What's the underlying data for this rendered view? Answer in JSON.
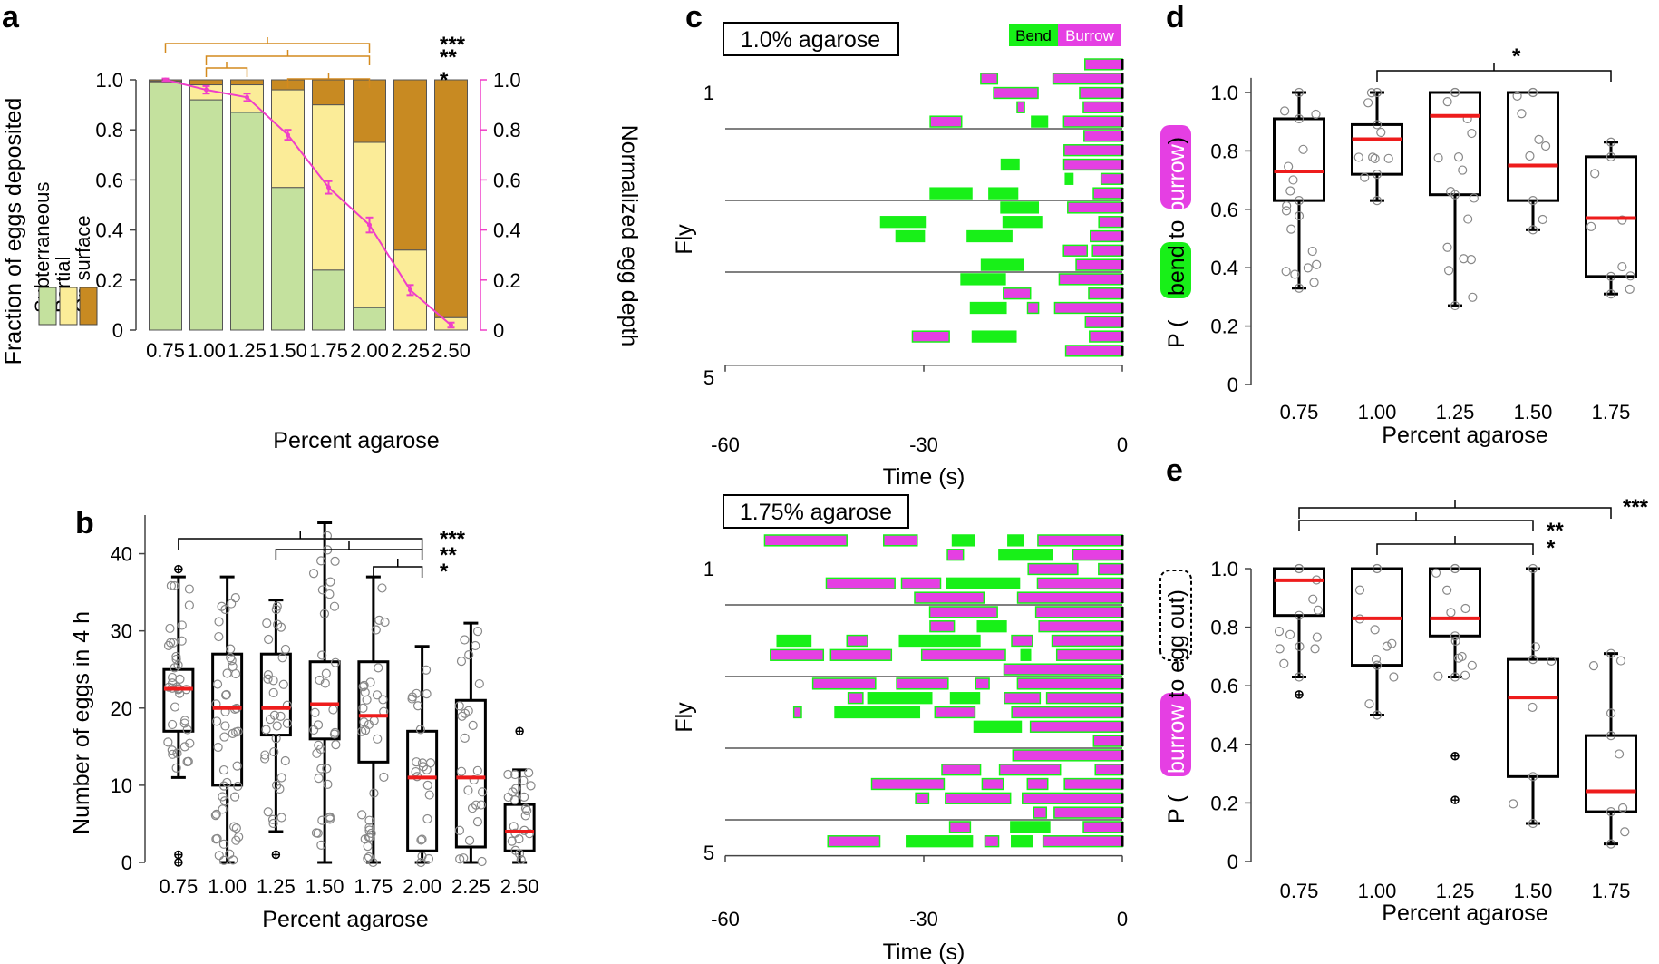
{
  "panels": [
    {
      "label": "a"
    },
    {
      "label": "b"
    },
    {
      "label": "c"
    },
    {
      "label": "d"
    },
    {
      "label": "e"
    }
  ],
  "colors": {
    "subterraneous": "#c4e19e",
    "partial": "#fbec98",
    "surface": "#c88a22",
    "pink": "#ef3fc8",
    "bend": "#18f018",
    "burrow": "#e53fe3",
    "median": "#ee1c1c"
  },
  "chart_data": [
    {
      "id": "a",
      "type": "bar",
      "categories": [
        "0.75",
        "1.00",
        "1.25",
        "1.50",
        "1.75",
        "2.00",
        "2.25",
        "2.50"
      ],
      "series": [
        {
          "name": "Subterraneous",
          "values": [
            0.99,
            0.92,
            0.87,
            0.57,
            0.24,
            0.09,
            0,
            0
          ]
        },
        {
          "name": "Partial",
          "values": [
            0.005,
            0.06,
            0.11,
            0.39,
            0.66,
            0.66,
            0.32,
            0.05
          ]
        },
        {
          "name": "On surface",
          "values": [
            0.005,
            0.02,
            0.02,
            0.04,
            0.1,
            0.25,
            0.68,
            0.95
          ]
        }
      ],
      "line": {
        "name": "Normalized egg depth",
        "values": [
          1.0,
          0.96,
          0.93,
          0.78,
          0.57,
          0.42,
          0.16,
          0.02
        ],
        "err": [
          0.005,
          0.015,
          0.015,
          0.02,
          0.025,
          0.03,
          0.02,
          0.01
        ]
      },
      "ylabel": "Fraction of eggs deposited",
      "y2label": "Normalized egg depth",
      "xlabel": "Percent agarose",
      "yticks": [
        "0",
        "0.2",
        "0.4",
        "0.6",
        "0.8",
        "1.0"
      ],
      "ylim": [
        0,
        1
      ],
      "legend": [
        "Subterraneous",
        "Partial",
        "On surface"
      ],
      "sig": [
        {
          "stars": "***",
          "a": 0,
          "b": 5
        },
        {
          "stars": "**",
          "a": 1,
          "b": 5
        },
        {
          "stars": "**",
          "a": 1,
          "b": 2
        },
        {
          "stars": "*",
          "a": 3,
          "b": 5
        }
      ]
    },
    {
      "id": "b",
      "type": "box",
      "categories": [
        "0.75",
        "1.00",
        "1.25",
        "1.50",
        "1.75",
        "2.00",
        "2.25",
        "2.50"
      ],
      "boxes": [
        {
          "q1": 17,
          "median": 22.5,
          "q3": 25,
          "wl": 11,
          "wh": 37,
          "out": [
            0,
            1,
            38
          ]
        },
        {
          "q1": 10,
          "median": 20,
          "q3": 27,
          "wl": 0,
          "wh": 37,
          "out": []
        },
        {
          "q1": 16.5,
          "median": 20,
          "q3": 27,
          "wl": 4,
          "wh": 34,
          "out": [
            1
          ]
        },
        {
          "q1": 16,
          "median": 20.5,
          "q3": 26,
          "wl": 0,
          "wh": 44,
          "out": []
        },
        {
          "q1": 13,
          "median": 19,
          "q3": 26,
          "wl": 0,
          "wh": 37,
          "out": []
        },
        {
          "q1": 1.5,
          "median": 11,
          "q3": 17,
          "wl": 0,
          "wh": 28,
          "out": []
        },
        {
          "q1": 2,
          "median": 11,
          "q3": 21,
          "wl": 0,
          "wh": 31,
          "out": []
        },
        {
          "q1": 1.5,
          "median": 4,
          "q3": 7.5,
          "wl": 0,
          "wh": 12,
          "out": [
            17
          ]
        }
      ],
      "ylabel": "Number of eggs in 4 h",
      "xlabel": "Percent agarose",
      "yticks": [
        "0",
        "10",
        "20",
        "30",
        "40"
      ],
      "ylim": [
        0,
        45
      ],
      "sig": [
        {
          "stars": "***",
          "a": 0,
          "b": 5
        },
        {
          "stars": "**",
          "a": 2,
          "b": 5
        },
        {
          "stars": "*",
          "a": 4,
          "b": 5
        }
      ]
    },
    {
      "id": "c",
      "type": "ethogram",
      "title": "1.0% agarose",
      "legend_bend": "Bend",
      "legend_burrow": "Burrow",
      "ylabel": "Fly",
      "row_first": "1",
      "row_fifth": "5",
      "xticks": [
        "-60",
        "-30",
        "0"
      ],
      "xlabel": "Time (s)"
    },
    {
      "id": "c2",
      "type": "ethogram",
      "title": "1.75% agarose",
      "ylabel": "Fly",
      "row_first": "1",
      "row_fifth": "5",
      "xticks": [
        "-60",
        "-30",
        "0"
      ],
      "xlabel": "Time (s)"
    },
    {
      "id": "d",
      "type": "box",
      "categories": [
        "0.75",
        "1.00",
        "1.25",
        "1.50",
        "1.75"
      ],
      "boxes": [
        {
          "q1": 0.63,
          "median": 0.73,
          "q3": 0.91,
          "wl": 0.33,
          "wh": 1.0,
          "out": []
        },
        {
          "q1": 0.72,
          "median": 0.84,
          "q3": 0.89,
          "wl": 0.63,
          "wh": 1.0,
          "out": []
        },
        {
          "q1": 0.65,
          "median": 0.92,
          "q3": 1.0,
          "wl": 0.27,
          "wh": 1.0,
          "out": []
        },
        {
          "q1": 0.63,
          "median": 0.75,
          "q3": 1.0,
          "wl": 0.53,
          "wh": 1.0,
          "out": []
        },
        {
          "q1": 0.37,
          "median": 0.57,
          "q3": 0.78,
          "wl": 0.31,
          "wh": 0.83,
          "out": []
        }
      ],
      "ylabel_prefix": "P (",
      "ylabel_a": "bend",
      "ylabel_mid": " to ",
      "ylabel_b": "burrow",
      "ylabel_suffix": ")",
      "xlabel": "Percent agarose",
      "yticks": [
        "0",
        "0.2",
        "0.4",
        "0.6",
        "0.8",
        "1.0"
      ],
      "ylim": [
        0,
        1
      ],
      "sig": [
        {
          "stars": "*",
          "a": 1,
          "b": 4
        }
      ]
    },
    {
      "id": "e",
      "type": "box",
      "categories": [
        "0.75",
        "1.00",
        "1.25",
        "1.50",
        "1.75"
      ],
      "boxes": [
        {
          "q1": 0.84,
          "median": 0.96,
          "q3": 1.0,
          "wl": 0.63,
          "wh": 1.0,
          "out": [
            0.57
          ]
        },
        {
          "q1": 0.67,
          "median": 0.83,
          "q3": 1.0,
          "wl": 0.5,
          "wh": 1.0,
          "out": []
        },
        {
          "q1": 0.77,
          "median": 0.83,
          "q3": 1.0,
          "wl": 0.63,
          "wh": 1.0,
          "out": [
            0.36,
            0.21
          ]
        },
        {
          "q1": 0.29,
          "median": 0.56,
          "q3": 0.69,
          "wl": 0.13,
          "wh": 1.0,
          "out": []
        },
        {
          "q1": 0.17,
          "median": 0.24,
          "q3": 0.43,
          "wl": 0.06,
          "wh": 0.71,
          "out": []
        }
      ],
      "ylabel_prefix": "P (",
      "ylabel_a": "burrow",
      "ylabel_mid": " to ",
      "ylabel_b": "egg out",
      "ylabel_suffix": ")",
      "xlabel": "Percent agarose",
      "yticks": [
        "0",
        "0.2",
        "0.4",
        "0.6",
        "0.8",
        "1.0"
      ],
      "ylim": [
        0,
        1
      ],
      "sig": [
        {
          "stars": "***",
          "a": 0,
          "b": 4
        },
        {
          "stars": "**",
          "a": 0,
          "b": 3
        },
        {
          "stars": "*",
          "a": 1,
          "b": 3
        }
      ]
    }
  ]
}
